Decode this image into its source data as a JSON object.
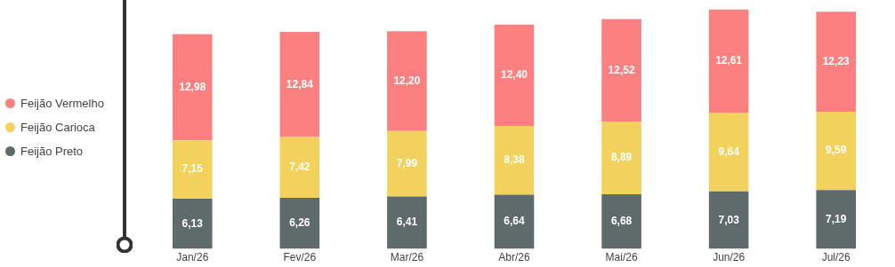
{
  "chart_data": {
    "type": "bar",
    "stacked": true,
    "categories": [
      "Jan/26",
      "Fev/26",
      "Mar/26",
      "Abr/26",
      "Mai/26",
      "Jun/26",
      "Jul/26"
    ],
    "series": [
      {
        "name": "Feijão Preto",
        "color": "#5f6a6b",
        "values": [
          6.13,
          6.26,
          6.41,
          6.64,
          6.68,
          7.03,
          7.19
        ],
        "value_labels": [
          "6,13",
          "6,26",
          "6,41",
          "6,64",
          "6,68",
          "7,03",
          "7,19"
        ]
      },
      {
        "name": "Feijão Carioca",
        "color": "#f2d25c",
        "values": [
          7.15,
          7.42,
          7.99,
          8.38,
          8.89,
          9.64,
          9.59
        ],
        "value_labels": [
          "7,15",
          "7,42",
          "7,99",
          "8,38",
          "8,89",
          "9,64",
          "9,59"
        ]
      },
      {
        "name": "Feijão Vermelho",
        "color": "#fc8080",
        "values": [
          12.98,
          12.84,
          12.2,
          12.4,
          12.52,
          12.61,
          12.23
        ],
        "value_labels": [
          "12,98",
          "12,84",
          "12,20",
          "12,40",
          "12,52",
          "12,61",
          "12,23"
        ]
      }
    ],
    "legend": "left",
    "grid": false
  }
}
